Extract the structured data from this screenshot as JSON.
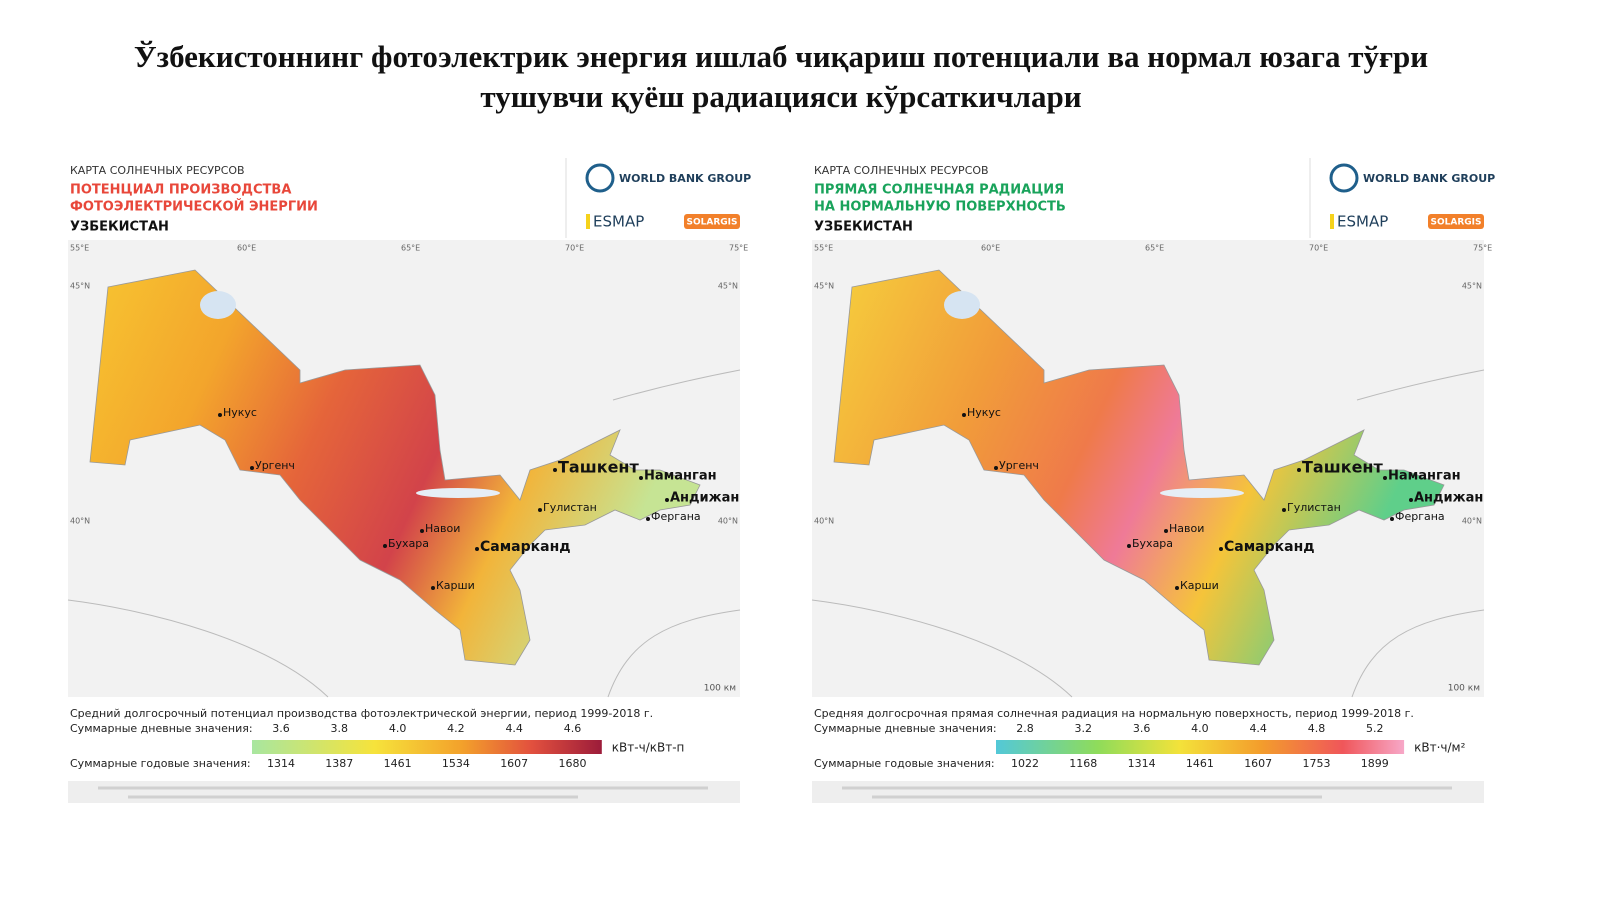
{
  "title": [
    "Ўзбекистоннинг фотоэлектрик энергия ишлаб чиқариш потенциали ва нормал юзага тўғри",
    "тушувчи қуёш радиацияси кўрсаткичлари"
  ],
  "maps": [
    {
      "kicker": "КАРТА СОЛНЕЧНЫХ РЕСУРСОВ",
      "heading": [
        "ПОТЕНЦИАЛ ПРОИЗВОДСТВА",
        "ФОТОЭЛЕКТРИЧЕСКОЙ ЭНЕРГИИ"
      ],
      "country": "УЗБЕКИСТАН",
      "logos": [
        "WORLD BANK GROUP",
        "ESMAP",
        "SOLARGIS"
      ],
      "lon_labels": [
        "55°E",
        "60°E",
        "65°E",
        "70°E",
        "75°E"
      ],
      "lat_labels": [
        "45°N",
        "40°N"
      ],
      "cities": [
        "Нукус",
        "Ургенч",
        "Ташкент",
        "Наманган",
        "Андижан",
        "Гулистан",
        "Фергана",
        "Навои",
        "Бухара",
        "Самарканд",
        "Карши"
      ],
      "scale": "100 км",
      "caption": "Средний долгосрочный потенциал производства фотоэлектрической энергии, период 1999-2018 г.",
      "daily_label": "Суммарные дневные значения:",
      "daily": [
        "3.6",
        "3.8",
        "4.0",
        "4.2",
        "4.4",
        "4.6"
      ],
      "unit": "кВт-ч/кВт-п",
      "annual_label": "Суммарные годовые значения:",
      "annual": [
        "1314",
        "1387",
        "1461",
        "1534",
        "1607",
        "1680"
      ]
    },
    {
      "kicker": "КАРТА СОЛНЕЧНЫХ РЕСУРСОВ",
      "heading": [
        "ПРЯМАЯ СОЛНЕЧНАЯ РАДИАЦИЯ",
        "НА НОРМАЛЬНУЮ ПОВЕРХНОСТЬ"
      ],
      "country": "УЗБЕКИСТАН",
      "logos": [
        "WORLD BANK GROUP",
        "ESMAP",
        "SOLARGIS"
      ],
      "lon_labels": [
        "55°E",
        "60°E",
        "65°E",
        "70°E",
        "75°E"
      ],
      "lat_labels": [
        "45°N",
        "40°N"
      ],
      "cities": [
        "Нукус",
        "Ургенч",
        "Ташкент",
        "Наманган",
        "Андижан",
        "Гулистан",
        "Фергана",
        "Навои",
        "Бухара",
        "Самарканд",
        "Карши"
      ],
      "scale": "100 км",
      "caption": "Средняя долгосрочная прямая солнечная радиация на нормальную поверхность, период 1999-2018 г.",
      "daily_label": "Суммарные дневные значения:",
      "daily": [
        "2.8",
        "3.2",
        "3.6",
        "4.0",
        "4.4",
        "4.8",
        "5.2"
      ],
      "unit": "кВт·ч/м²",
      "annual_label": "Суммарные годовые значения:",
      "annual": [
        "1022",
        "1168",
        "1314",
        "1461",
        "1607",
        "1753",
        "1899"
      ]
    }
  ]
}
